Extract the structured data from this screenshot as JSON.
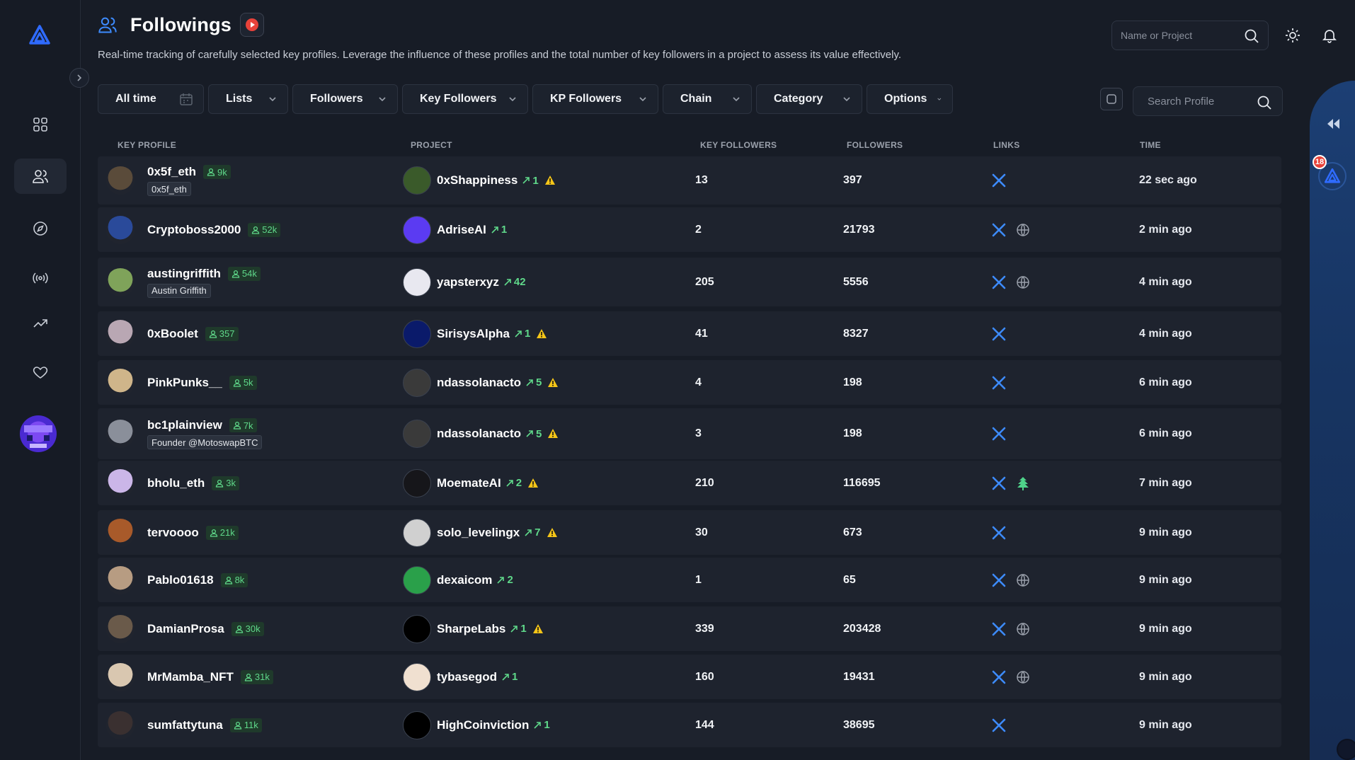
{
  "header": {
    "title": "Followings",
    "subtitle": "Real-time tracking of carefully selected key profiles. Leverage the influence of these profiles and the total number of key followers in a project to assess its value effectively.",
    "search_placeholder": "Name or Project"
  },
  "filters": [
    "All time",
    "Lists",
    "Followers",
    "Key Followers",
    "KP Followers",
    "Chain",
    "Category",
    "Options"
  ],
  "profile_search_placeholder": "Search Profile",
  "table": {
    "columns": [
      "KEY PROFILE",
      "PROJECT",
      "KEY FOLLOWERS",
      "FOLLOWERS",
      "LINKS",
      "TIME"
    ],
    "rows": [
      {
        "name": "0x5f_eth",
        "badge": "9k",
        "sub": "0x5f_eth",
        "project": "0xShappiness",
        "count": "1",
        "warn": true,
        "key_followers": "13",
        "followers": "397",
        "links": [
          "x"
        ],
        "time": "22 sec ago"
      },
      {
        "name": "Cryptoboss2000",
        "badge": "52k",
        "sub": "",
        "project": "AdriseAI",
        "count": "1",
        "warn": false,
        "key_followers": "2",
        "followers": "21793",
        "links": [
          "x",
          "web"
        ],
        "time": "2 min ago"
      },
      {
        "name": "austingriffith",
        "badge": "54k",
        "sub": "Austin Griffith",
        "project": "yapsterxyz",
        "count": "42",
        "warn": false,
        "key_followers": "205",
        "followers": "5556",
        "links": [
          "x",
          "web"
        ],
        "time": "4 min ago"
      },
      {
        "name": "0xBoolet",
        "badge": "357",
        "sub": "",
        "project": "SirisysAlpha",
        "count": "1",
        "warn": true,
        "key_followers": "41",
        "followers": "8327",
        "links": [
          "x"
        ],
        "time": "4 min ago"
      },
      {
        "name": "PinkPunks__",
        "badge": "5k",
        "sub": "",
        "project": "ndassolanacto",
        "count": "5",
        "warn": true,
        "key_followers": "4",
        "followers": "198",
        "links": [
          "x"
        ],
        "time": "6 min ago"
      },
      {
        "name": "bc1plainview",
        "badge": "7k",
        "sub": "Founder @MotoswapBTC",
        "project": "ndassolanacto",
        "count": "5",
        "warn": true,
        "key_followers": "3",
        "followers": "198",
        "links": [
          "x"
        ],
        "time": "6 min ago"
      },
      {
        "name": "bholu_eth",
        "badge": "3k",
        "sub": "",
        "project": "MoemateAI",
        "count": "2",
        "warn": true,
        "key_followers": "210",
        "followers": "116695",
        "links": [
          "x",
          "linktree"
        ],
        "time": "7 min ago"
      },
      {
        "name": "tervoooo",
        "badge": "21k",
        "sub": "",
        "project": "solo_levelingx",
        "count": "7",
        "warn": true,
        "key_followers": "30",
        "followers": "673",
        "links": [
          "x"
        ],
        "time": "9 min ago"
      },
      {
        "name": "Pablo01618",
        "badge": "8k",
        "sub": "",
        "project": "dexaicom",
        "count": "2",
        "warn": false,
        "key_followers": "1",
        "followers": "65",
        "links": [
          "x",
          "web"
        ],
        "time": "9 min ago"
      },
      {
        "name": "DamianProsa",
        "badge": "30k",
        "sub": "",
        "project": "SharpeLabs",
        "count": "1",
        "warn": true,
        "key_followers": "339",
        "followers": "203428",
        "links": [
          "x",
          "web"
        ],
        "time": "9 min ago"
      },
      {
        "name": "MrMamba_NFT",
        "badge": "31k",
        "sub": "",
        "project": "tybasegod",
        "count": "1",
        "warn": false,
        "key_followers": "160",
        "followers": "19431",
        "links": [
          "x",
          "web"
        ],
        "time": "9 min ago"
      },
      {
        "name": "sumfattytuna",
        "badge": "11k",
        "sub": "",
        "project": "HighCoinviction",
        "count": "1",
        "warn": false,
        "key_followers": "144",
        "followers": "38695",
        "links": [
          "x"
        ],
        "time": "9 min ago"
      }
    ]
  },
  "right_panel": {
    "badge": "18"
  },
  "colors": {
    "accent": "#2f6bff",
    "green": "#5fd88a",
    "warn": "#f5c518",
    "x_blue": "#3d8bff"
  }
}
